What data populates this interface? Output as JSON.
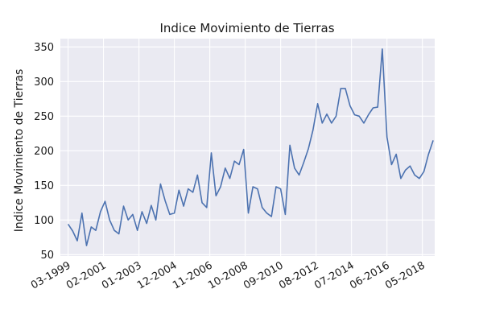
{
  "chart_data": {
    "type": "line",
    "title": "Indice Movimiento de Tierras",
    "xlabel": "",
    "ylabel": "Indice Movimiento de Tierras",
    "ylim": [
      48,
      362
    ],
    "xlim": [
      "1998-10",
      "2019-01"
    ],
    "grid": true,
    "legend": "none",
    "colors": {
      "plot_bg": "#eaeaf2",
      "grid": "#ffffff",
      "line": "#4c72b0"
    },
    "y_ticks": [
      50,
      100,
      150,
      200,
      250,
      300,
      350
    ],
    "x_ticks": [
      "03-1999",
      "02-2001",
      "01-2003",
      "12-2004",
      "11-2006",
      "10-2008",
      "09-2010",
      "08-2012",
      "07-2014",
      "06-2016",
      "05-2018"
    ],
    "series": [
      {
        "x": [
          "1999-03",
          "1999-06",
          "1999-09",
          "1999-12",
          "2000-03",
          "2000-06",
          "2000-09",
          "2000-12",
          "2001-03",
          "2001-06",
          "2001-09",
          "2001-12",
          "2002-03",
          "2002-06",
          "2002-09",
          "2002-12",
          "2003-03",
          "2003-06",
          "2003-09",
          "2003-12",
          "2004-03",
          "2004-06",
          "2004-09",
          "2004-12",
          "2005-03",
          "2005-06",
          "2005-09",
          "2005-12",
          "2006-03",
          "2006-06",
          "2006-09",
          "2006-12",
          "2007-03",
          "2007-06",
          "2007-09",
          "2007-12",
          "2008-03",
          "2008-06",
          "2008-09",
          "2008-12",
          "2009-03",
          "2009-06",
          "2009-09",
          "2009-12",
          "2010-03",
          "2010-06",
          "2010-09",
          "2010-12",
          "2011-03",
          "2011-06",
          "2011-09",
          "2011-12",
          "2012-03",
          "2012-06",
          "2012-09",
          "2012-12",
          "2013-03",
          "2013-06",
          "2013-09",
          "2013-12",
          "2014-03",
          "2014-06",
          "2014-09",
          "2014-12",
          "2015-03",
          "2015-06",
          "2015-09",
          "2015-12",
          "2016-03",
          "2016-06",
          "2016-09",
          "2016-12",
          "2017-03",
          "2017-06",
          "2017-09",
          "2017-12",
          "2018-03",
          "2018-06",
          "2018-09",
          "2018-12"
        ],
        "values": [
          94,
          84,
          70,
          110,
          63,
          90,
          85,
          112,
          127,
          100,
          85,
          80,
          120,
          100,
          108,
          85,
          112,
          95,
          121,
          100,
          152,
          128,
          108,
          110,
          143,
          120,
          145,
          140,
          165,
          125,
          118,
          197,
          135,
          148,
          175,
          160,
          185,
          180,
          202,
          110,
          148,
          145,
          118,
          110,
          105,
          148,
          145,
          108,
          208,
          175,
          165,
          183,
          203,
          230,
          268,
          240,
          253,
          240,
          250,
          290,
          290,
          265,
          252,
          250,
          240,
          252,
          262,
          263,
          347,
          220,
          180,
          195,
          160,
          172,
          178,
          165,
          160,
          170,
          195,
          215
        ]
      }
    ]
  }
}
